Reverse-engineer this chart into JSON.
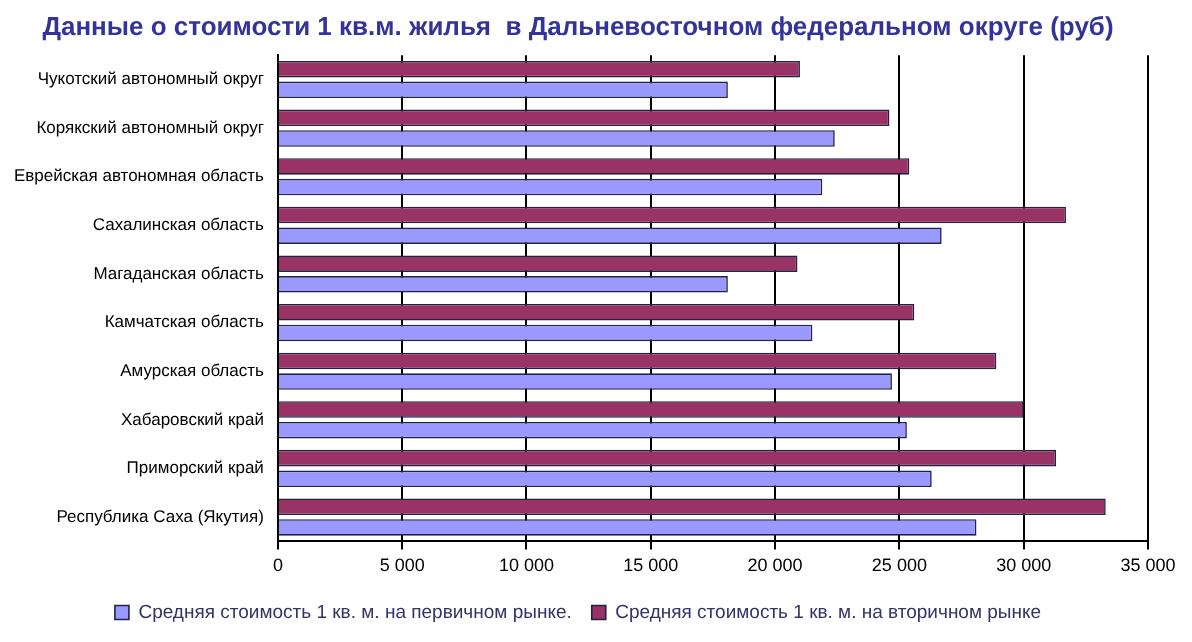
{
  "chart_data": {
    "type": "bar",
    "orientation": "horizontal",
    "title": "Данные о стоимости 1 кв.м. жилья  в Дальневосточном федеральном округе (руб)",
    "categories": [
      "Чукотский автономный округ",
      "Корякский автономный округ",
      "Еврейская автономная область",
      "Сахалинская область",
      "Магаданская область",
      "Камчатская область",
      "Амурская область",
      "Хабаровский край",
      "Приморский край",
      "Республика Саха (Якутия)"
    ],
    "series": [
      {
        "name": "Средняя стоимость 1 кв. м. на первичном рынке.",
        "color": "#9999ff",
        "values": [
          18100,
          22400,
          21900,
          26700,
          18100,
          21500,
          24700,
          25300,
          26300,
          28100
        ]
      },
      {
        "name": "Средняя стоимость 1 кв. м. на вторичном рынке",
        "color": "#993366",
        "values": [
          21000,
          24600,
          25400,
          31700,
          20900,
          25600,
          28900,
          30000,
          31300,
          33300
        ]
      }
    ],
    "xlim": [
      0,
      35000
    ],
    "xticks": [
      0,
      {
        "value": 5000,
        "label": "5 000"
      },
      {
        "value": 10000,
        "label": "10 000"
      },
      {
        "value": 15000,
        "label": "15 000"
      },
      {
        "value": 20000,
        "label": "20 000"
      },
      {
        "value": 25000,
        "label": "25 000"
      },
      {
        "value": 30000,
        "label": "30 000"
      },
      {
        "value": 35000,
        "label": "35 000"
      }
    ],
    "grid": "x",
    "legend": "bottom"
  }
}
